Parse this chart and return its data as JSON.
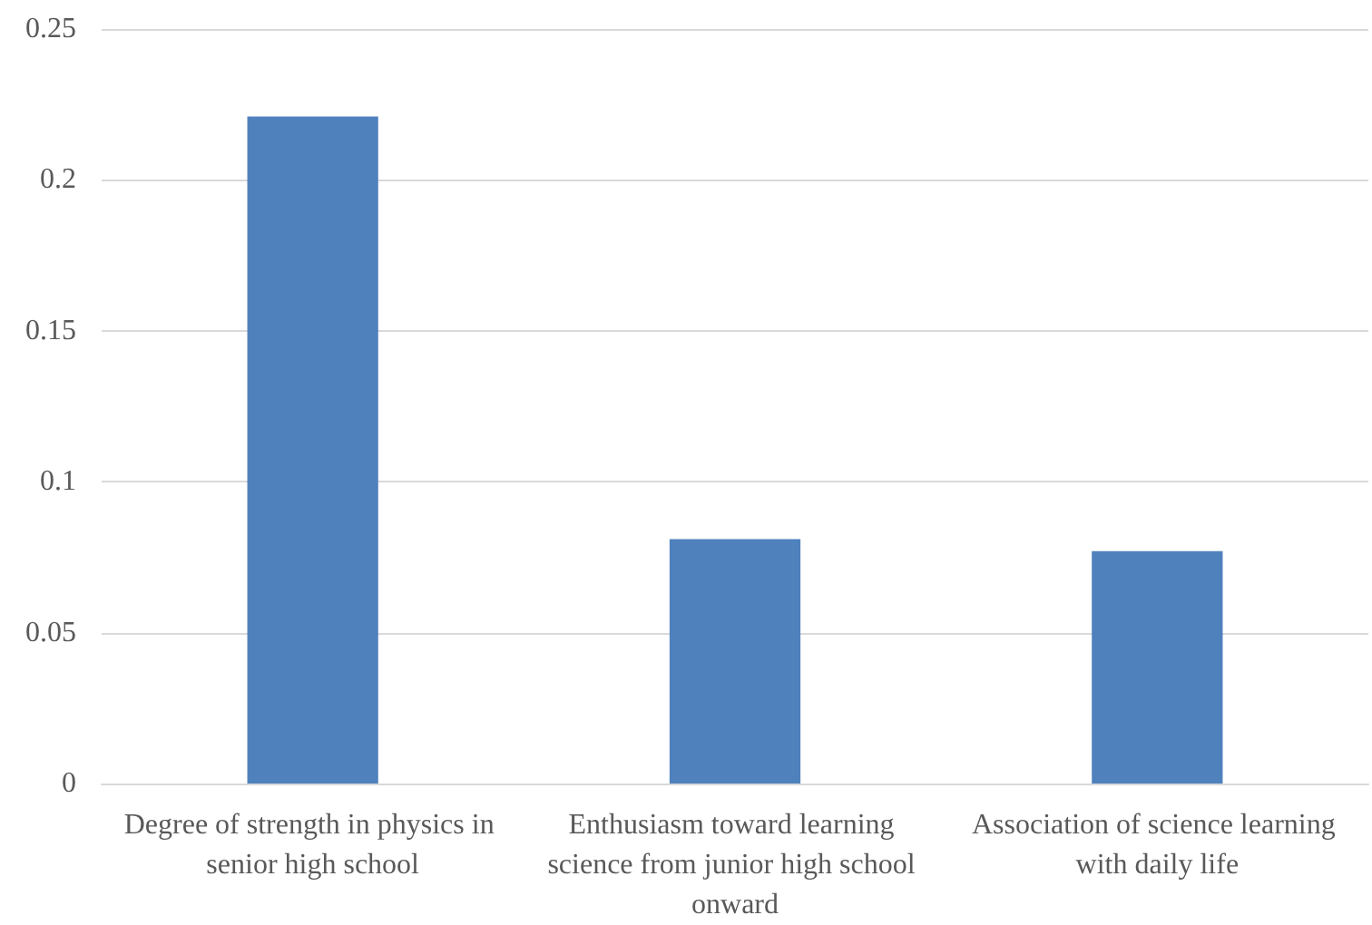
{
  "chart_data": {
    "type": "bar",
    "categories": [
      "Degree of strength in physics in senior high school",
      "Enthusiasm toward learning science from junior high school onward",
      "Association of science learning with daily life"
    ],
    "values": [
      0.221,
      0.081,
      0.077
    ],
    "color": "#4f81bd",
    "ylim": [
      0,
      0.25
    ],
    "yticks": [
      0,
      0.05,
      0.1,
      0.15,
      0.2,
      0.25
    ],
    "grid": "y"
  }
}
